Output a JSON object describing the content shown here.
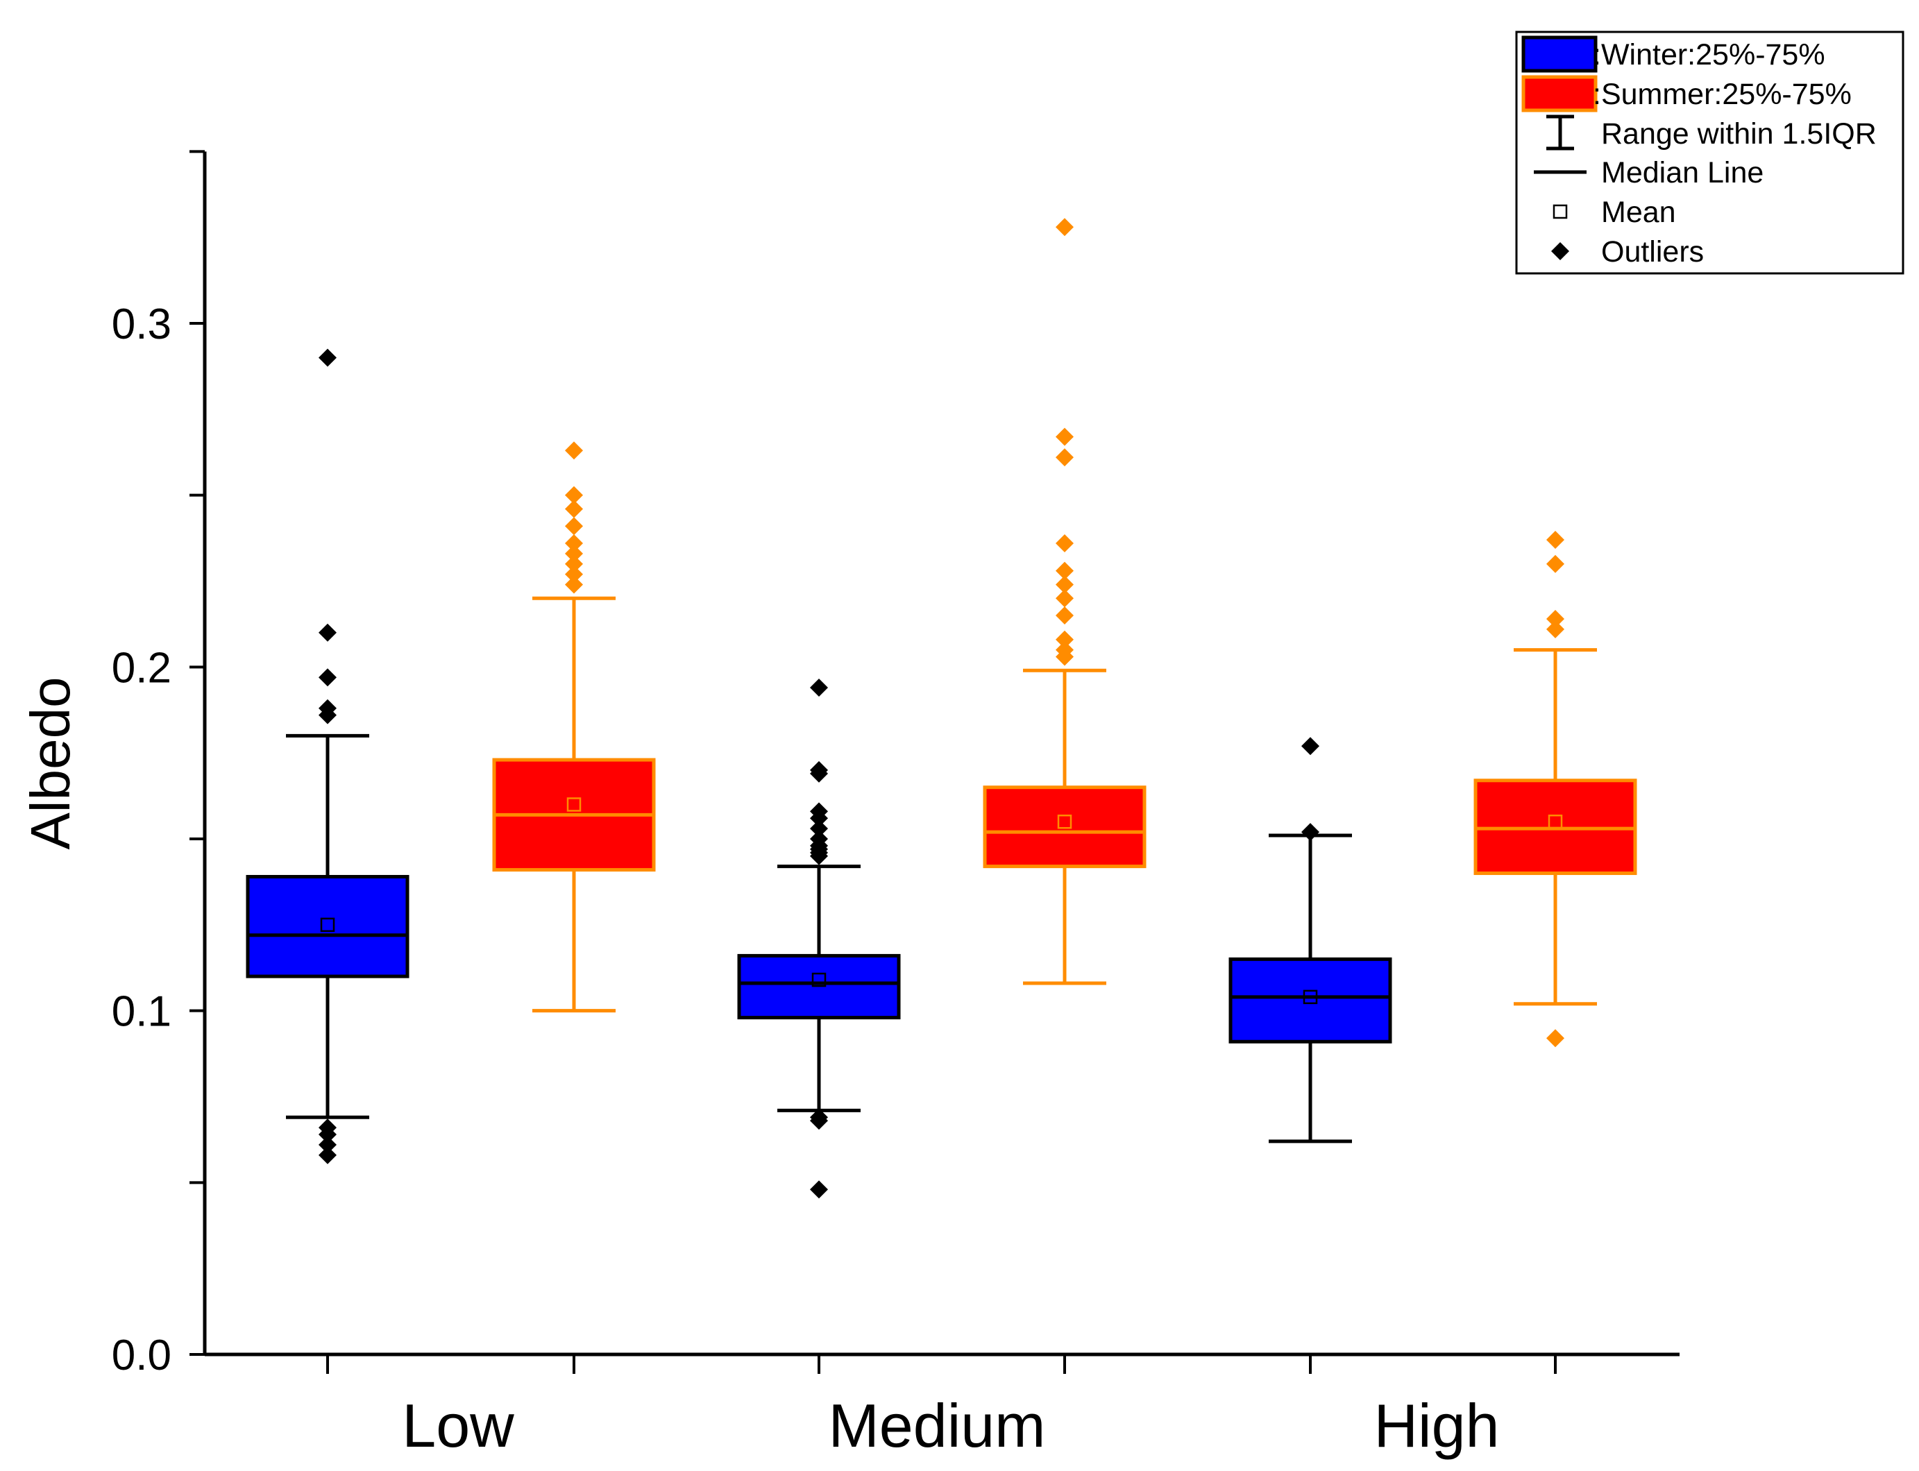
{
  "chart_data": {
    "type": "box",
    "title": "",
    "xlabel": "",
    "ylabel": "Albedo",
    "ylim": [
      0.0,
      0.35
    ],
    "yticks": [
      "0.0",
      "0.1",
      "0.2",
      "0.3"
    ],
    "ytick_values": [
      0.0,
      0.1,
      0.2,
      0.3
    ],
    "categories": [
      "Low",
      "Medium",
      "High"
    ],
    "grid": false,
    "legend_position": "top-right",
    "series": [
      {
        "name": "Winter",
        "box_color": "#0000ff",
        "edge_color": "#000000",
        "outlier_color": "#000000",
        "boxes": [
          {
            "category": "Low",
            "whisker_low": 0.069,
            "q1": 0.11,
            "median": 0.122,
            "q3": 0.139,
            "whisker_high": 0.18,
            "mean": 0.125,
            "outliers": [
              0.29,
              0.21,
              0.197,
              0.188,
              0.186,
              0.066,
              0.064,
              0.061,
              0.058
            ]
          },
          {
            "category": "Medium",
            "whisker_low": 0.071,
            "q1": 0.098,
            "median": 0.108,
            "q3": 0.116,
            "whisker_high": 0.142,
            "mean": 0.109,
            "outliers": [
              0.194,
              0.17,
              0.169,
              0.158,
              0.156,
              0.153,
              0.15,
              0.148,
              0.147,
              0.146,
              0.145,
              0.069,
              0.068,
              0.048
            ]
          },
          {
            "category": "High",
            "whisker_low": 0.062,
            "q1": 0.091,
            "median": 0.104,
            "q3": 0.115,
            "whisker_high": 0.151,
            "mean": 0.104,
            "outliers": [
              0.177,
              0.152
            ]
          }
        ]
      },
      {
        "name": "Summer",
        "box_color": "#ff0000",
        "edge_color": "#ff8c00",
        "outlier_color": "#ff8c00",
        "boxes": [
          {
            "category": "Low",
            "whisker_low": 0.1,
            "q1": 0.141,
            "median": 0.157,
            "q3": 0.173,
            "whisker_high": 0.22,
            "mean": 0.16,
            "outliers": [
              0.263,
              0.25,
              0.246,
              0.241,
              0.236,
              0.233,
              0.23,
              0.227,
              0.224
            ]
          },
          {
            "category": "Medium",
            "whisker_low": 0.108,
            "q1": 0.142,
            "median": 0.152,
            "q3": 0.165,
            "whisker_high": 0.199,
            "mean": 0.155,
            "outliers": [
              0.328,
              0.267,
              0.261,
              0.236,
              0.228,
              0.224,
              0.22,
              0.215,
              0.208,
              0.205,
              0.203
            ]
          },
          {
            "category": "High",
            "whisker_low": 0.102,
            "q1": 0.14,
            "median": 0.153,
            "q3": 0.167,
            "whisker_high": 0.205,
            "mean": 0.155,
            "outliers": [
              0.237,
              0.23,
              0.214,
              0.211,
              0.092
            ]
          }
        ]
      }
    ],
    "legend": [
      {
        "key": "winter",
        "label": ":Winter:25%-75%",
        "kind": "box",
        "color": "#0000ff",
        "edge": "#000000"
      },
      {
        "key": "summer",
        "label": ":Summer:25%-75%",
        "kind": "box",
        "color": "#ff0000",
        "edge": "#ff8c00"
      },
      {
        "key": "range",
        "label": "Range within 1.5IQR",
        "kind": "range"
      },
      {
        "key": "median",
        "label": "Median Line",
        "kind": "line"
      },
      {
        "key": "mean",
        "label": "Mean",
        "kind": "mean"
      },
      {
        "key": "outliers",
        "label": "Outliers",
        "kind": "diamond"
      }
    ]
  }
}
